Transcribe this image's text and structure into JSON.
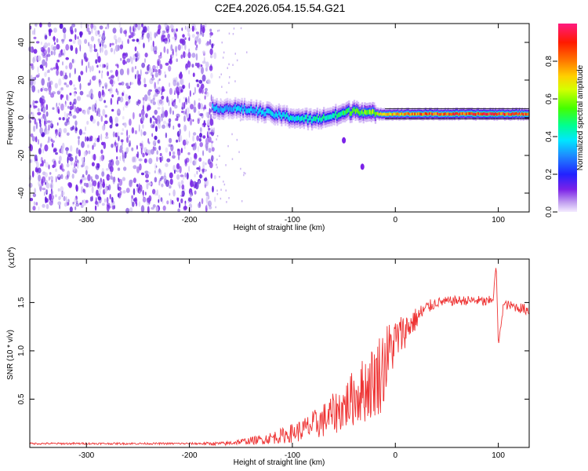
{
  "title": "C2E4.2026.054.15.54.G21",
  "chart_data": [
    {
      "type": "heatmap",
      "title": "",
      "xlabel": "Height of straight line (km)",
      "ylabel": "Frequency (Hz)",
      "xlim": [
        -355,
        130
      ],
      "ylim": [
        -50,
        50
      ],
      "xticks": [
        -300,
        -200,
        -100,
        0,
        100
      ],
      "yticks": [
        -40,
        -20,
        0,
        20,
        40
      ],
      "noise_region": {
        "x": [
          -355,
          -175
        ],
        "y": [
          -50,
          50
        ],
        "description_level": "scattered low amplitude"
      },
      "signal_center": [
        {
          "x": -178,
          "y": 5
        },
        {
          "x": -160,
          "y": 5
        },
        {
          "x": -140,
          "y": 4
        },
        {
          "x": -120,
          "y": 2
        },
        {
          "x": -100,
          "y": 0
        },
        {
          "x": -80,
          "y": -1
        },
        {
          "x": -60,
          "y": 1
        },
        {
          "x": -40,
          "y": 4
        },
        {
          "x": -20,
          "y": 2
        },
        {
          "x": 0,
          "y": 2
        },
        {
          "x": 20,
          "y": 2
        },
        {
          "x": 50,
          "y": 2
        },
        {
          "x": 80,
          "y": 2
        },
        {
          "x": 100,
          "y": 2
        },
        {
          "x": 130,
          "y": 2
        }
      ],
      "peak_amplitude_by_x": [
        {
          "x": -178,
          "a": 0.35
        },
        {
          "x": -120,
          "a": 0.4
        },
        {
          "x": -60,
          "a": 0.5
        },
        {
          "x": -30,
          "a": 0.6
        },
        {
          "x": 0,
          "a": 0.8
        },
        {
          "x": 40,
          "a": 0.92
        },
        {
          "x": 100,
          "a": 0.95
        },
        {
          "x": 130,
          "a": 0.9
        }
      ],
      "outliers": [
        {
          "x": -32,
          "y": -26
        },
        {
          "x": -50,
          "y": -12
        }
      ],
      "colorbar": {
        "label": "Normalized spectral amplitude",
        "range": [
          0,
          1
        ],
        "ticks": [
          "0.0",
          "0.2",
          "0.4",
          "0.6",
          "0.8"
        ]
      }
    },
    {
      "type": "line",
      "title": "",
      "xlabel": "Height of straight line (km)",
      "ylabel": "SNR (10 * v/v)",
      "scale_label": "(x10",
      "scale_exp": "4",
      "xlim": [
        -355,
        130
      ],
      "ylim": [
        0,
        1.95
      ],
      "xticks": [
        -300,
        -200,
        -100,
        0,
        100
      ],
      "yticks": [
        0.5,
        1.0,
        1.5
      ],
      "series": [
        {
          "name": "SNR",
          "color": "#ee3333",
          "x": [
            -355,
            -200,
            -165,
            -150,
            -130,
            -110,
            -90,
            -70,
            -50,
            -40,
            -30,
            -20,
            -12,
            -8,
            0,
            10,
            20,
            30,
            40,
            60,
            80,
            90,
            95,
            98,
            100,
            105,
            115,
            130
          ],
          "y": [
            0.04,
            0.04,
            0.04,
            0.06,
            0.08,
            0.12,
            0.18,
            0.28,
            0.42,
            0.52,
            0.6,
            0.7,
            0.82,
            0.95,
            1.1,
            1.22,
            1.33,
            1.44,
            1.5,
            1.52,
            1.52,
            1.5,
            1.55,
            1.9,
            1.05,
            1.48,
            1.46,
            1.42
          ],
          "noise_amp": [
            0.01,
            0.01,
            0.02,
            0.03,
            0.05,
            0.08,
            0.12,
            0.18,
            0.25,
            0.3,
            0.35,
            0.4,
            0.45,
            0.35,
            0.25,
            0.18,
            0.12,
            0.08,
            0.05,
            0.05,
            0.05,
            0.06,
            0.05,
            0,
            0,
            0.05,
            0.05,
            0.06
          ]
        }
      ]
    }
  ]
}
